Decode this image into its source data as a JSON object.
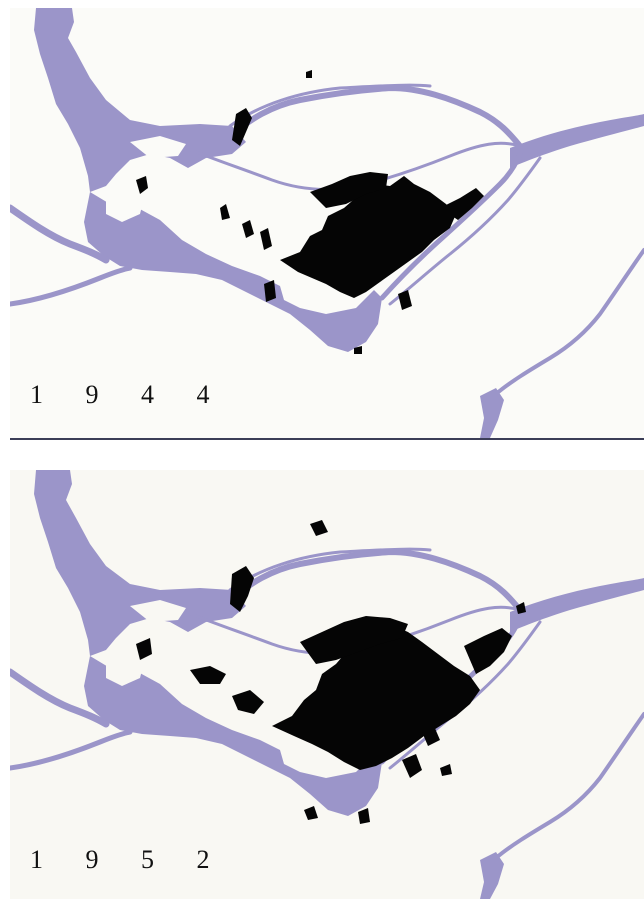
{
  "maps": [
    {
      "year_label": "1 9 4 4"
    },
    {
      "year_label": "1 9 5 2"
    }
  ],
  "colors": {
    "water": "#9b95c9",
    "urban_area": "#050505",
    "paper": "#fbfbf8",
    "frame_line": "#3b3d57"
  }
}
